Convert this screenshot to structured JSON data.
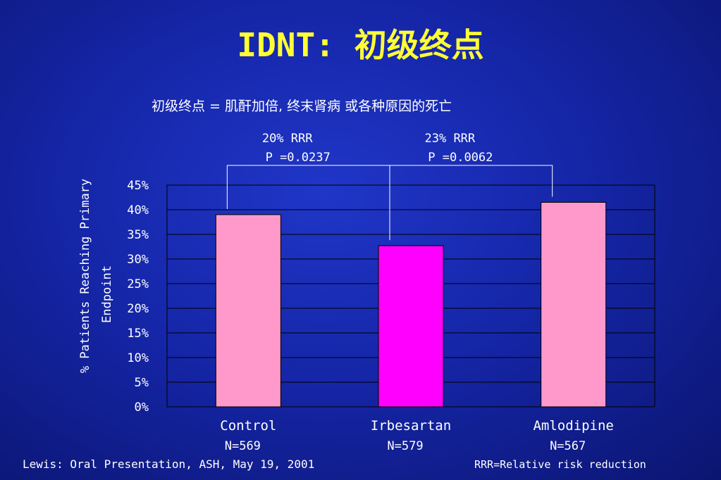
{
  "slide": {
    "title": "IDNT:  初级终点",
    "subtitle": "初级终点 = 肌酐加倍, 终末肾病 或各种原因的死亡",
    "footer_left": "Lewis:  Oral Presentation, ASH, May 19, 2001",
    "footer_right": "RRR=Relative risk reduction"
  },
  "chart_data": {
    "type": "bar",
    "ylabel_line1": "% Patients Reaching Primary",
    "ylabel_line2": "Endpoint",
    "ylim": [
      0,
      45
    ],
    "yticks": [
      0,
      5,
      10,
      15,
      20,
      25,
      30,
      35,
      40,
      45
    ],
    "ytick_suffix": "%",
    "grid": true,
    "categories": [
      "Control",
      "Irbesartan",
      "Amlodipine"
    ],
    "sample_sizes": [
      "N=569",
      "N=579",
      "N=567"
    ],
    "values": [
      39,
      32.7,
      41.5
    ],
    "bar_colors": [
      "#ff99cc",
      "#ff00ff",
      "#ff99cc"
    ],
    "comparisons": [
      {
        "from": 0,
        "to": 1,
        "line1": "20% RRR",
        "line2": "P =0.0237"
      },
      {
        "from": 1,
        "to": 2,
        "line1": "23% RRR",
        "line2": "P =0.0062"
      }
    ]
  }
}
